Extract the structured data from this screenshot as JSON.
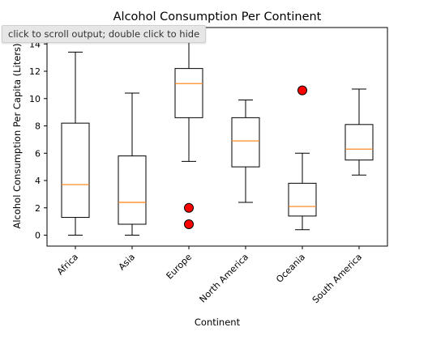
{
  "chart_data": {
    "type": "boxplot",
    "title": "Alcohol Consumption Per Continent",
    "xlabel": "Continent",
    "ylabel": "Alcohol Consumption Per Capita (Liters)",
    "ylim": [
      -0.8,
      15.2
    ],
    "yticks": [
      0,
      2,
      4,
      6,
      8,
      10,
      12,
      14
    ],
    "grid": false,
    "colors": {
      "box": "#000000",
      "median": "#ff7f0e",
      "flier_fill": "#ff0000",
      "flier_edge": "#000000"
    },
    "categories": [
      "Africa",
      "Asia",
      "Europe",
      "North America",
      "Oceania",
      "South America"
    ],
    "boxes": [
      {
        "whisker_low": 0.0,
        "q1": 1.3,
        "median": 3.7,
        "q3": 8.2,
        "whisker_high": 13.4,
        "fliers": []
      },
      {
        "whisker_low": 0.0,
        "q1": 0.8,
        "median": 2.4,
        "q3": 5.8,
        "whisker_high": 10.4,
        "fliers": []
      },
      {
        "whisker_low": 5.4,
        "q1": 8.6,
        "median": 11.1,
        "q3": 12.2,
        "whisker_high": 15.2,
        "fliers": [
          2.0,
          0.8
        ]
      },
      {
        "whisker_low": 2.4,
        "q1": 5.0,
        "median": 6.9,
        "q3": 8.6,
        "whisker_high": 9.9,
        "fliers": []
      },
      {
        "whisker_low": 0.4,
        "q1": 1.4,
        "median": 2.1,
        "q3": 3.8,
        "whisker_high": 6.0,
        "fliers": [
          10.6
        ]
      },
      {
        "whisker_low": 4.4,
        "q1": 5.5,
        "median": 6.3,
        "q3": 8.1,
        "whisker_high": 10.7,
        "fliers": []
      }
    ]
  },
  "tooltip": {
    "text": "click to scroll output; double click to hide"
  }
}
